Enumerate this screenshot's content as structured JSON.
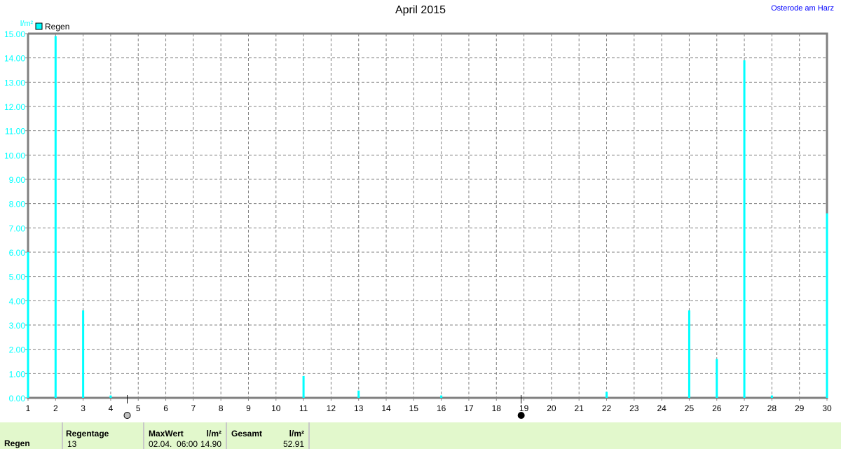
{
  "chart_data": {
    "type": "bar",
    "title": "April 2015",
    "station": "Osterode am Harz",
    "ylabel": "l/m²",
    "ylim": [
      0,
      15
    ],
    "yticks": [
      "0.00",
      "1.00",
      "2.00",
      "3.00",
      "4.00",
      "5.00",
      "6.00",
      "7.00",
      "8.00",
      "9.00",
      "10.00",
      "11.00",
      "12.00",
      "13.00",
      "14.00",
      "15.00"
    ],
    "xlim": [
      1,
      30
    ],
    "xticks": [
      "1",
      "2",
      "3",
      "4",
      "5",
      "6",
      "7",
      "8",
      "9",
      "10",
      "11",
      "12",
      "13",
      "14",
      "15",
      "16",
      "17",
      "18",
      "19",
      "20",
      "21",
      "22",
      "23",
      "24",
      "25",
      "26",
      "27",
      "28",
      "29",
      "30"
    ],
    "grid": true,
    "legend": {
      "placement": "top-left",
      "entries": [
        "Regen"
      ]
    },
    "series": [
      {
        "name": "Regen",
        "color": "#00ffff",
        "x": [
          1,
          2,
          3,
          4,
          11,
          13,
          16,
          22,
          25,
          26,
          27,
          28,
          30
        ],
        "values": [
          6.0,
          14.9,
          3.6,
          0.1,
          0.9,
          0.3,
          0.1,
          0.25,
          3.6,
          1.6,
          13.9,
          0.1,
          7.6
        ]
      }
    ],
    "moon_phases": [
      {
        "day": 4.6,
        "phase": "full-moon"
      },
      {
        "day": 18.9,
        "phase": "new-moon"
      }
    ]
  },
  "table": {
    "row_label": "Regen",
    "regentage_header": "Regentage",
    "regentage": "13",
    "maxwert_header": "MaxWert",
    "maxwert_unit": "l/m²",
    "maxwert_date": "02.04.  06:00",
    "maxwert": "14.90",
    "gesamt_header": "Gesamt",
    "gesamt_unit": "l/m²",
    "gesamt": "52.91"
  }
}
